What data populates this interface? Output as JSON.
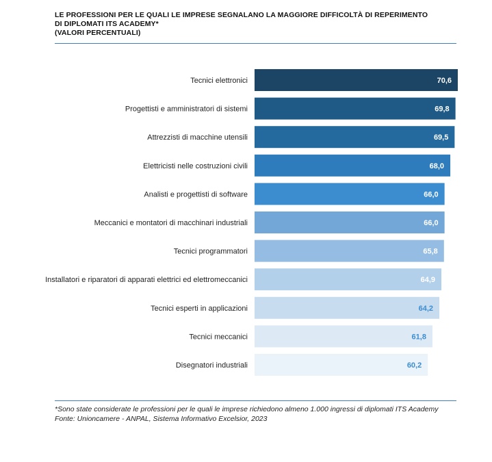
{
  "header": {
    "title_line1": "LE PROFESSIONI PER LE QUALI LE IMPRESE SEGNALANO LA MAGGIORE DIFFICOLTÀ DI REPERIMENTO",
    "title_line2": "DI DIPLOMATI ITS ACADEMY*",
    "title_line3": "(VALORI PERCENTUALI)"
  },
  "footer": {
    "note": "*Sono state considerate le professioni per le quali le imprese richiedono almeno 1.000 ingressi di diplomati ITS Academy",
    "source": "Fonte: Unioncamere - ANPAL, Sistema Informativo Excelsior, 2023"
  },
  "chart_data": {
    "type": "bar",
    "orientation": "horizontal",
    "title": "LE PROFESSIONI PER LE QUALI LE IMPRESE SEGNALANO LA MAGGIORE DIFFICOLTÀ DI REPERIMENTO DI DIPLOMATI ITS ACADEMY* (VALORI PERCENTUALI)",
    "categories": [
      "Tecnici elettronici",
      "Progettisti e amministratori di sistemi",
      "Attrezzisti di macchine utensili",
      "Elettricisti nelle costruzioni civili",
      "Analisti e progettisti di software",
      "Meccanici e montatori di macchinari industriali",
      "Tecnici programmatori",
      "Installatori e riparatori di apparati elettrici ed elettromeccanici",
      "Tecnici esperti in applicazioni",
      "Tecnici meccanici",
      "Disegnatori industriali"
    ],
    "values": [
      70.6,
      69.8,
      69.5,
      68.0,
      66.0,
      66.0,
      65.8,
      64.9,
      64.2,
      61.8,
      60.2
    ],
    "value_labels": [
      "70,6",
      "69,8",
      "69,5",
      "68,0",
      "66,0",
      "66,0",
      "65,8",
      "64,9",
      "64,2",
      "61,8",
      "60,2"
    ],
    "bar_colors": [
      "#1c4565",
      "#1f5a86",
      "#256a9f",
      "#2f7cbc",
      "#3c8dd0",
      "#72a7d8",
      "#95bde3",
      "#b3d0ea",
      "#c8dcf0",
      "#ddeaf6",
      "#eaf2fa"
    ],
    "label_colors": [
      "#ffffff",
      "#ffffff",
      "#ffffff",
      "#ffffff",
      "#ffffff",
      "#ffffff",
      "#ffffff",
      "#ffffff",
      "#3c8dd0",
      "#3c8dd0",
      "#3c8dd0"
    ],
    "xlim": [
      0,
      70.6
    ],
    "grid": false,
    "legend": "none"
  }
}
